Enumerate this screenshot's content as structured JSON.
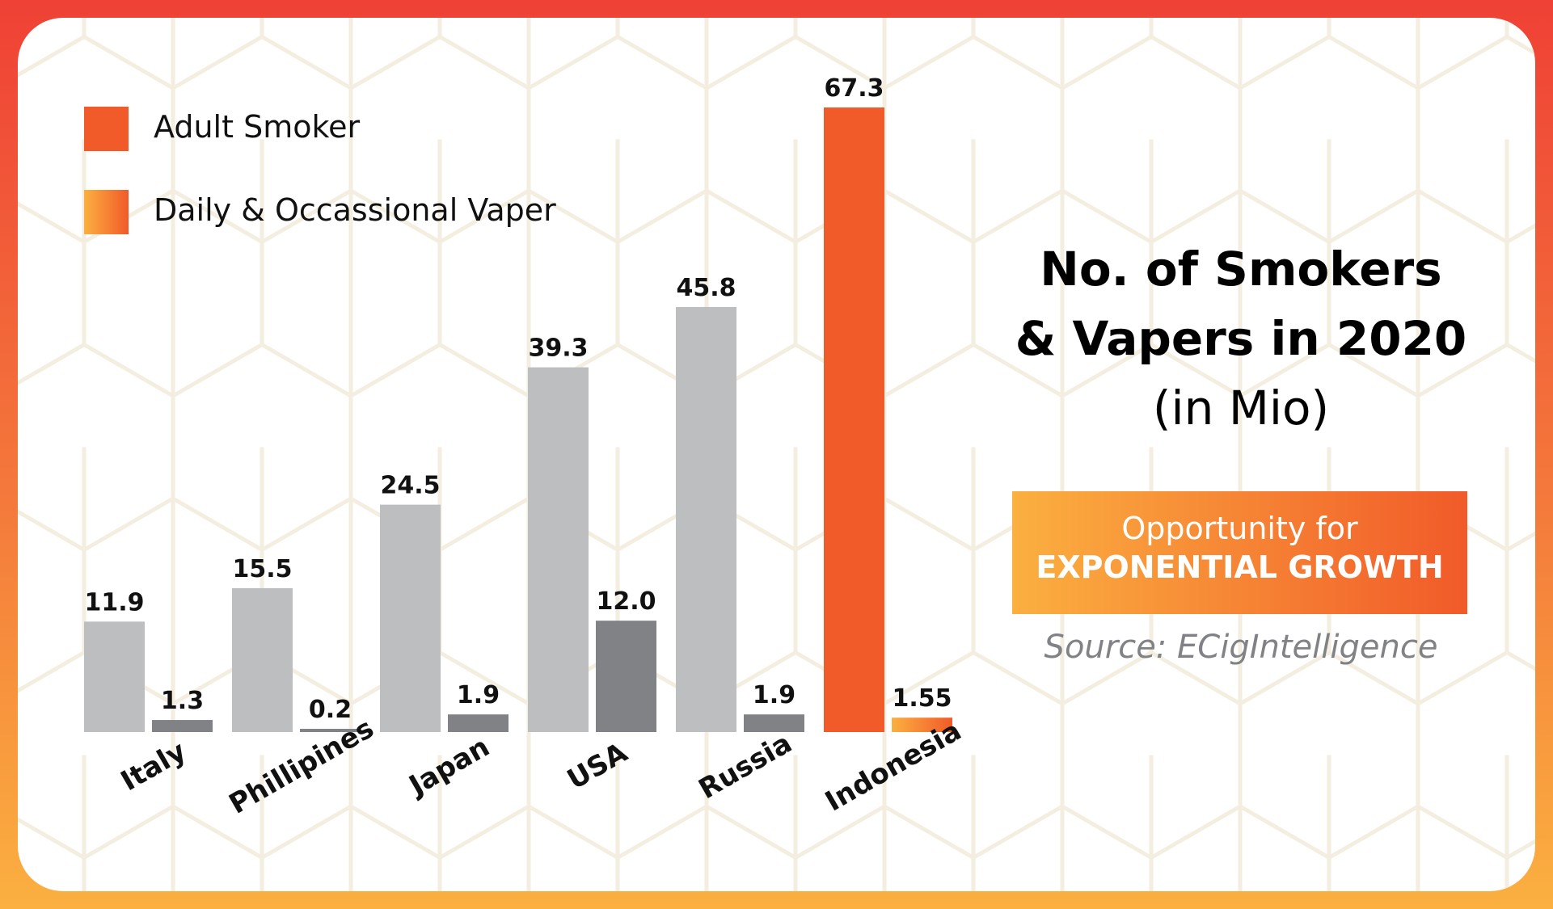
{
  "chart_data": {
    "type": "bar",
    "title": "No. of Smokers & Vapers in 2020",
    "subtitle": "(in Mio)",
    "categories": [
      "Italy",
      "Phillipines",
      "Japan",
      "USA",
      "Russia",
      "Indonesia"
    ],
    "series": [
      {
        "name": "Adult Smoker",
        "values": [
          11.9,
          15.5,
          24.5,
          39.3,
          45.8,
          67.3
        ],
        "labels": [
          "11.9",
          "15.5",
          "24.5",
          "39.3",
          "45.8",
          "67.3"
        ]
      },
      {
        "name": "Daily & Occassional Vaper",
        "values": [
          1.3,
          0.2,
          1.9,
          12.0,
          1.9,
          1.55
        ],
        "labels": [
          "1.3",
          "0.2",
          "1.9",
          "12.0",
          "1.9",
          "1.55"
        ]
      }
    ],
    "highlight_category": "Indonesia",
    "ylim": [
      0,
      67.3
    ],
    "grid": false,
    "legend_position": "top-left",
    "xlabel": "",
    "ylabel": ""
  },
  "legend": {
    "smoker": "Adult Smoker",
    "vaper": "Daily & Occassional Vaper"
  },
  "title": {
    "line1": "No. of Smokers",
    "line2": "& Vapers in 2020",
    "line3": "(in Mio)"
  },
  "promo": {
    "line1": "Opportunity for",
    "line2": "EXPONENTIAL GROWTH"
  },
  "source": "Source: ECigIntelligence",
  "colors": {
    "smoker_gray": "#bcbec0",
    "vaper_gray": "#808285",
    "accent": "#f15a29",
    "accent_light": "#fbb040",
    "pattern": "#f3eee0"
  }
}
